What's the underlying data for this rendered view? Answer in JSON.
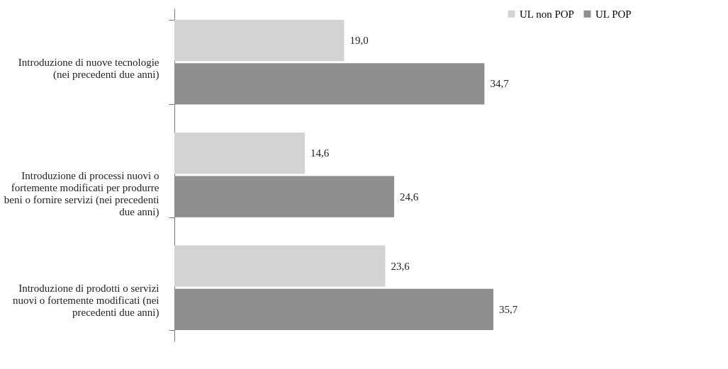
{
  "chart_data": {
    "type": "bar",
    "orientation": "horizontal",
    "legend": "right",
    "categories": [
      "Introduzione di nuove tecnologie\n(nei precedenti due anni)",
      "Introduzione di processi nuovi o\nfortemente modificati per produrre\nbeni o fornire servizi (nei precedenti\ndue anni)",
      "Introduzione di prodotti o servizi\nnuovi o fortemente modificati (nei\nprecedenti due anni)"
    ],
    "series": [
      {
        "name": "UL non POP",
        "color": "#d3d3d3",
        "values": [
          19.0,
          14.6,
          23.6
        ],
        "value_labels": [
          "19,0",
          "14,6",
          "23,6"
        ]
      },
      {
        "name": "UL POP",
        "color": "#8e8e8e",
        "values": [
          34.7,
          24.6,
          35.7
        ],
        "value_labels": [
          "34,7",
          "24,6",
          "35,7"
        ]
      }
    ]
  }
}
